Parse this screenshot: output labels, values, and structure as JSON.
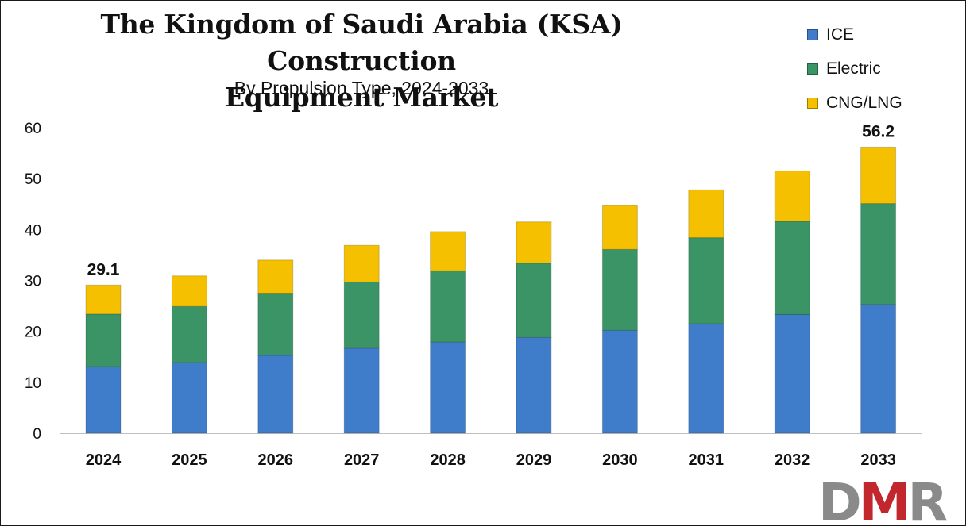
{
  "header": {
    "title_line1": "The Kingdom of Saudi Arabia (KSA) Construction",
    "title_line2": "Equipment Market",
    "subtitle": "By Propulsion Type, 2024-2033"
  },
  "colors": {
    "ICE": "#3f7dcb",
    "Electric": "#3a9466",
    "CNG/LNG": "#f5c000"
  },
  "logo": {
    "text": "DMR",
    "colors": [
      "#8a8a8a",
      "#c1272d",
      "#8a8a8a"
    ]
  },
  "chart_data": {
    "type": "bar",
    "stacked": true,
    "categories": [
      "2024",
      "2025",
      "2026",
      "2027",
      "2028",
      "2029",
      "2030",
      "2031",
      "2032",
      "2033"
    ],
    "series": [
      {
        "name": "ICE",
        "values": [
          13.1,
          13.9,
          15.3,
          16.7,
          17.9,
          18.8,
          20.2,
          21.5,
          23.3,
          25.3
        ]
      },
      {
        "name": "Electric",
        "values": [
          10.3,
          11.0,
          12.2,
          13.0,
          14.0,
          14.6,
          15.9,
          16.9,
          18.3,
          19.8
        ]
      },
      {
        "name": "CNG/LNG",
        "values": [
          5.7,
          6.0,
          6.5,
          7.2,
          7.7,
          8.1,
          8.6,
          9.4,
          9.9,
          11.1
        ]
      }
    ],
    "data_labels": [
      {
        "category": "2024",
        "text": "29.1"
      },
      {
        "category": "2033",
        "text": "56.2"
      }
    ],
    "ylim": [
      0,
      60
    ],
    "yticks": [
      "0",
      "10",
      "20",
      "30",
      "40",
      "50",
      "60"
    ],
    "grid": false,
    "legend": "top-right"
  }
}
